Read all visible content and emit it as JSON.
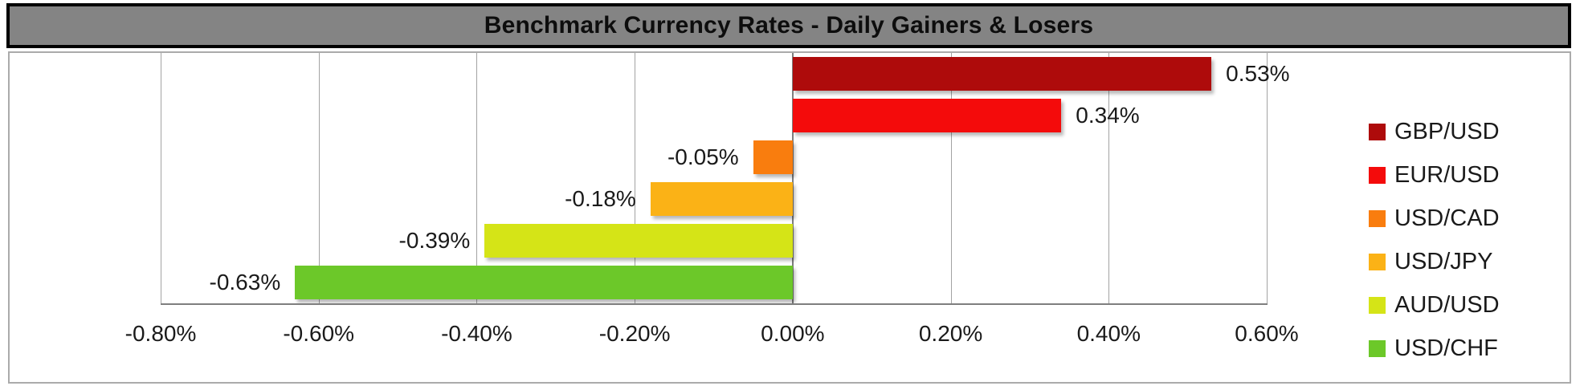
{
  "title": "Benchmark Currency Rates - Daily Gainers & Losers",
  "chart_data": {
    "type": "bar",
    "orientation": "horizontal",
    "title": "Benchmark Currency Rates - Daily Gainers & Losers",
    "categories": [
      "GBP/USD",
      "EUR/USD",
      "USD/CAD",
      "USD/JPY",
      "AUD/USD",
      "USD/CHF"
    ],
    "values": [
      0.53,
      0.34,
      -0.05,
      -0.18,
      -0.39,
      -0.63
    ],
    "value_labels": [
      "0.53%",
      "0.34%",
      "-0.05%",
      "-0.18%",
      "-0.39%",
      "-0.63%"
    ],
    "bar_colors": [
      "#ae0b0b",
      "#f40b0b",
      "#f97d0e",
      "#fbb216",
      "#d5e417",
      "#6cc829"
    ],
    "x_ticks": [
      {
        "value": -0.8,
        "label": "-0.80%"
      },
      {
        "value": -0.6,
        "label": "-0.60%"
      },
      {
        "value": -0.4,
        "label": "-0.40%"
      },
      {
        "value": -0.2,
        "label": "-0.20%"
      },
      {
        "value": 0.0,
        "label": "0.00%"
      },
      {
        "value": 0.2,
        "label": "0.20%"
      },
      {
        "value": 0.4,
        "label": "0.40%"
      },
      {
        "value": 0.6,
        "label": "0.60%"
      }
    ],
    "xlim": [
      -0.8,
      0.6
    ],
    "grid": true,
    "legend_position": "right",
    "legend_entries": [
      "GBP/USD",
      "EUR/USD",
      "USD/CAD",
      "USD/JPY",
      "AUD/USD",
      "USD/CHF"
    ]
  },
  "styles": {
    "title_bg": "#848484",
    "title_border": "#000000",
    "chart_border": "#ababab",
    "gridline_color": "#a3a3a3",
    "axis_color": "#7f7f7f",
    "text_color": "#1a1a1a"
  }
}
